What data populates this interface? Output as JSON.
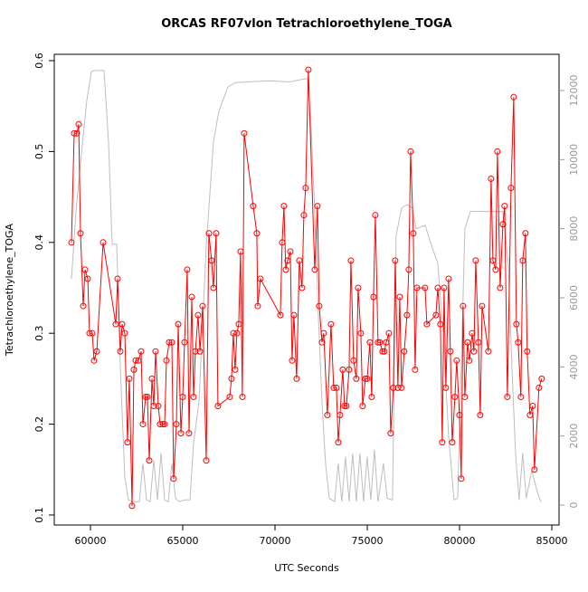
{
  "chart_data": {
    "type": "line",
    "title": "ORCAS RF07vlon Tetrachloroethylene_TOGA",
    "xlabel": "UTC Seconds",
    "ylabel": "Tetrachloroethylene_TOGA",
    "xlim": [
      58040,
      85390
    ],
    "xticks": [
      60000,
      65000,
      70000,
      75000,
      80000,
      85000
    ],
    "ylim": [
      0.089,
      0.607
    ],
    "yticks": [
      0.1,
      0.2,
      0.3,
      0.4,
      0.5,
      0.6
    ],
    "y2lim": [
      -576,
      13048
    ],
    "y2ticks": [
      0,
      2000,
      4000,
      6000,
      8000,
      10000,
      12000
    ],
    "series": [
      {
        "color": "#ff0000",
        "marker": true,
        "x": [
          58970,
          59118,
          59265,
          59363,
          59461,
          59608,
          59706,
          59853,
          59951,
          60098,
          60196,
          60343,
          60686,
          61372,
          61470,
          61617,
          61715,
          61862,
          62009,
          62107,
          62254,
          62352,
          62450,
          62597,
          62744,
          62842,
          62989,
          63087,
          63185,
          63332,
          63430,
          63528,
          63675,
          63773,
          63920,
          64018,
          64116,
          64263,
          64410,
          64508,
          64655,
          64753,
          64900,
          64998,
          65096,
          65243,
          65341,
          65488,
          65586,
          65684,
          65831,
          65929,
          66076,
          66272,
          66419,
          66566,
          66664,
          66811,
          66909,
          67546,
          67644,
          67742,
          67840,
          67938,
          68036,
          68134,
          68232,
          68330,
          68820,
          69016,
          69065,
          69212,
          70290,
          70388,
          70486,
          70584,
          70682,
          70829,
          70927,
          71025,
          71172,
          71319,
          71466,
          71564,
          71662,
          71809,
          72152,
          72299,
          72397,
          72544,
          72642,
          72838,
          73034,
          73181,
          73328,
          73426,
          73524,
          73671,
          73769,
          73867,
          74014,
          74112,
          74259,
          74406,
          74504,
          74651,
          74749,
          74896,
          74994,
          75141,
          75239,
          75337,
          75435,
          75582,
          75680,
          75827,
          75925,
          76023,
          76170,
          76268,
          76415,
          76513,
          76660,
          76758,
          76856,
          77003,
          77150,
          77248,
          77346,
          77493,
          77591,
          77689,
          78130,
          78228,
          78718,
          78816,
          78963,
          79061,
          79159,
          79257,
          79404,
          79502,
          79600,
          79747,
          79845,
          79992,
          80090,
          80188,
          80286,
          80433,
          80531,
          80678,
          80776,
          80874,
          81021,
          81119,
          81217,
          81560,
          81707,
          81805,
          81952,
          82050,
          82197,
          82344,
          82442,
          82589,
          82785,
          82932,
          83079,
          83177,
          83324,
          83422,
          83569,
          83667,
          83814,
          83961,
          84059,
          84304,
          84451
        ],
        "values": [
          0.4,
          0.52,
          0.52,
          0.53,
          0.41,
          0.33,
          0.37,
          0.36,
          0.3,
          0.3,
          0.27,
          0.28,
          0.4,
          0.31,
          0.36,
          0.28,
          0.31,
          0.3,
          0.18,
          0.25,
          0.11,
          0.26,
          0.27,
          0.27,
          0.28,
          0.2,
          0.23,
          0.23,
          0.16,
          0.25,
          0.22,
          0.28,
          0.22,
          0.2,
          0.2,
          0.2,
          0.27,
          0.29,
          0.29,
          0.14,
          0.2,
          0.31,
          0.19,
          0.23,
          0.29,
          0.37,
          0.19,
          0.34,
          0.23,
          0.28,
          0.32,
          0.28,
          0.33,
          0.16,
          0.41,
          0.38,
          0.35,
          0.41,
          0.22,
          0.23,
          0.25,
          0.3,
          0.26,
          0.3,
          0.31,
          0.39,
          0.23,
          0.52,
          0.44,
          0.41,
          0.33,
          0.36,
          0.32,
          0.4,
          0.44,
          0.37,
          0.38,
          0.39,
          0.27,
          0.32,
          0.25,
          0.38,
          0.35,
          0.43,
          0.46,
          0.59,
          0.37,
          0.44,
          0.33,
          0.29,
          0.3,
          0.21,
          0.31,
          0.24,
          0.24,
          0.18,
          0.21,
          0.26,
          0.22,
          0.22,
          0.26,
          0.38,
          0.27,
          0.25,
          0.35,
          0.3,
          0.22,
          0.25,
          0.25,
          0.29,
          0.23,
          0.34,
          0.43,
          0.29,
          0.29,
          0.28,
          0.28,
          0.29,
          0.3,
          0.19,
          0.24,
          0.38,
          0.24,
          0.34,
          0.24,
          0.28,
          0.32,
          0.37,
          0.5,
          0.41,
          0.26,
          0.35,
          0.35,
          0.31,
          0.32,
          0.35,
          0.31,
          0.18,
          0.35,
          0.24,
          0.36,
          0.28,
          0.18,
          0.23,
          0.27,
          0.21,
          0.14,
          0.33,
          0.23,
          0.29,
          0.27,
          0.3,
          0.28,
          0.38,
          0.29,
          0.21,
          0.33,
          0.28,
          0.47,
          0.38,
          0.37,
          0.5,
          0.35,
          0.42,
          0.44,
          0.23,
          0.46,
          0.56,
          0.31,
          0.29,
          0.23,
          0.38,
          0.41,
          0.28,
          0.21,
          0.22,
          0.15,
          0.24,
          0.25
        ]
      },
      {
        "color": "#bebebe",
        "axis": "y2",
        "x": [
          58970,
          59215,
          59510,
          59800,
          60050,
          60200,
          60735,
          60980,
          61176,
          61420,
          61617,
          61862,
          62058,
          62254,
          62646,
          62842,
          63038,
          63234,
          63430,
          63626,
          63822,
          64018,
          64214,
          64410,
          64606,
          64802,
          65096,
          65390,
          65586,
          65880,
          66272,
          66664,
          66958,
          67448,
          67840,
          68820,
          69800,
          70780,
          71270,
          71760,
          71956,
          72152,
          72348,
          72544,
          72740,
          72936,
          73230,
          73426,
          73622,
          73818,
          74014,
          74210,
          74406,
          74602,
          74798,
          74994,
          75190,
          75386,
          75582,
          75876,
          76072,
          76366,
          76562,
          76856,
          77150,
          77444,
          77640,
          78130,
          78424,
          78816,
          79110,
          79404,
          79698,
          79894,
          80090,
          80286,
          80580,
          81560,
          82344,
          82638,
          82834,
          83030,
          83226,
          83422,
          83618,
          83912,
          84206,
          84402
        ],
        "values": [
          6550,
          8500,
          10170,
          11700,
          12540,
          12580,
          12580,
          10500,
          7550,
          7550,
          4000,
          800,
          150,
          100,
          100,
          1200,
          150,
          100,
          1300,
          150,
          1500,
          150,
          100,
          1200,
          200,
          100,
          150,
          150,
          1800,
          3000,
          7500,
          10500,
          11400,
          12100,
          12230,
          12260,
          12280,
          12250,
          12300,
          12350,
          11000,
          8500,
          5500,
          3000,
          1200,
          200,
          100,
          1200,
          100,
          1400,
          100,
          1500,
          100,
          1500,
          100,
          1400,
          150,
          1600,
          100,
          1200,
          200,
          150,
          7800,
          8600,
          8700,
          8600,
          8000,
          8100,
          7600,
          7000,
          5000,
          2000,
          150,
          200,
          4000,
          8000,
          8500,
          8500,
          8500,
          7000,
          4000,
          1500,
          150,
          1500,
          200,
          1000,
          400,
          100
        ]
      }
    ]
  }
}
